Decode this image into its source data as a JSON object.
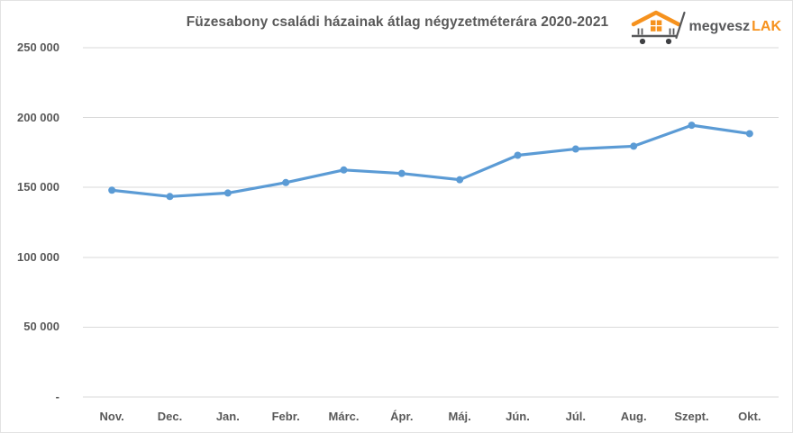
{
  "page": {
    "background": "#ffffff",
    "border_color": "#e2e2e2"
  },
  "logo": {
    "text_primary": "megvesz",
    "text_accent": "LAK",
    "primary_color": "#58595b",
    "accent_color": "#f6921e",
    "icon": "house-on-cart-icon"
  },
  "chart_data": {
    "type": "line",
    "title": "Füzesabony családi házainak átlag négyzetméterára 2020-2021",
    "categories": [
      "Nov.",
      "Dec.",
      "Jan.",
      "Febr.",
      "Márc.",
      "Ápr.",
      "Máj.",
      "Jún.",
      "Júl.",
      "Aug.",
      "Szept.",
      "Okt."
    ],
    "values": [
      148000,
      143500,
      146000,
      153500,
      162500,
      160000,
      155500,
      173000,
      177500,
      179500,
      194500,
      188500
    ],
    "xlabel": "",
    "ylabel": "",
    "ylim": [
      0,
      250000
    ],
    "yticks": [
      {
        "value": 250000,
        "label": "250 000"
      },
      {
        "value": 200000,
        "label": "200 000"
      },
      {
        "value": 150000,
        "label": "150 000"
      },
      {
        "value": 100000,
        "label": "100 000"
      },
      {
        "value": 50000,
        "label": "50 000"
      },
      {
        "value": 0,
        "label": "-"
      }
    ],
    "grid": true,
    "legend": false,
    "line_color": "#5b9bd5",
    "marker_color": "#5b9bd5",
    "gridline_color": "#d9d9d9",
    "axis_label_color": "#595959",
    "title_color": "#595959"
  }
}
